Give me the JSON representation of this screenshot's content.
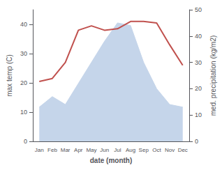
{
  "chart_data": {
    "type": "line",
    "categories": [
      "Jan",
      "Feb",
      "Mar",
      "Apr",
      "May",
      "Jun",
      "Jul",
      "Aug",
      "Sep",
      "Oct",
      "Nov",
      "Dec"
    ],
    "xlabel": "date (month)",
    "ylabel": "max temp (C)",
    "y2label": "med. precipitation (kg/m2)",
    "ylim": [
      0,
      45
    ],
    "yticks": [
      0,
      10,
      20,
      30,
      40
    ],
    "y2lim": [
      0,
      50
    ],
    "y2ticks": [
      0,
      10,
      20,
      30,
      40,
      50
    ],
    "grid": false,
    "series": [
      {
        "type": "area",
        "axis": "y2",
        "color": "#c5d5ea",
        "values": [
          13,
          17,
          14,
          22,
          30,
          38,
          45,
          44,
          30,
          20,
          14,
          13
        ]
      },
      {
        "type": "line",
        "color": "#c0504d",
        "values": [
          20.5,
          21.5,
          27,
          38,
          39.5,
          38,
          38.5,
          41,
          41,
          40.5,
          33,
          26
        ]
      }
    ]
  }
}
